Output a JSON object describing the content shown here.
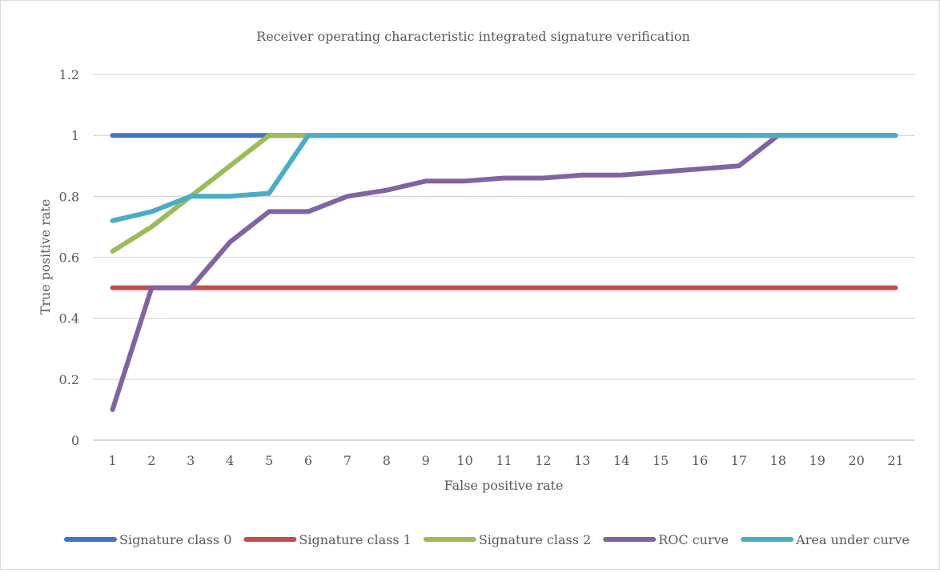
{
  "chart_data": {
    "type": "line",
    "title": "Receiver operating characteristic integrated signature verification",
    "xlabel": "False positive rate",
    "ylabel": "True positive rate",
    "categories": [
      "1",
      "2",
      "3",
      "4",
      "5",
      "6",
      "7",
      "8",
      "9",
      "10",
      "11",
      "12",
      "13",
      "14",
      "15",
      "16",
      "17",
      "18",
      "19",
      "20",
      "21"
    ],
    "ylim": [
      0,
      1.2
    ],
    "yticks": [
      "0",
      "0.2",
      "0.4",
      "0.6",
      "0.8",
      "1",
      "1.2"
    ],
    "grid": true,
    "legend_position": "bottom",
    "series": [
      {
        "name": "Signature class 0",
        "color": "#4472C4",
        "values": [
          1,
          1,
          1,
          1,
          1,
          1,
          1,
          1,
          1,
          1,
          1,
          1,
          1,
          1,
          1,
          1,
          1,
          1,
          1,
          1,
          1
        ]
      },
      {
        "name": "Signature class 1",
        "color": "#C0504D",
        "values": [
          0.5,
          0.5,
          0.5,
          0.5,
          0.5,
          0.5,
          0.5,
          0.5,
          0.5,
          0.5,
          0.5,
          0.5,
          0.5,
          0.5,
          0.5,
          0.5,
          0.5,
          0.5,
          0.5,
          0.5,
          0.5
        ]
      },
      {
        "name": "Signature class 2",
        "color": "#9BBB59",
        "values": [
          0.62,
          0.7,
          0.8,
          0.9,
          1,
          1,
          1,
          1,
          1,
          1,
          1,
          1,
          1,
          1,
          1,
          1,
          1,
          1,
          1,
          1,
          1
        ]
      },
      {
        "name": "ROC curve",
        "color": "#8064A2",
        "values": [
          0.1,
          0.5,
          0.5,
          0.65,
          0.75,
          0.75,
          0.8,
          0.82,
          0.85,
          0.85,
          0.86,
          0.86,
          0.87,
          0.87,
          0.88,
          0.89,
          0.9,
          1,
          1,
          1,
          1
        ]
      },
      {
        "name": "Area under curve",
        "color": "#4BACC6",
        "values": [
          0.72,
          0.75,
          0.8,
          0.8,
          0.81,
          1,
          1,
          1,
          1,
          1,
          1,
          1,
          1,
          1,
          1,
          1,
          1,
          1,
          1,
          1,
          1
        ]
      }
    ]
  }
}
